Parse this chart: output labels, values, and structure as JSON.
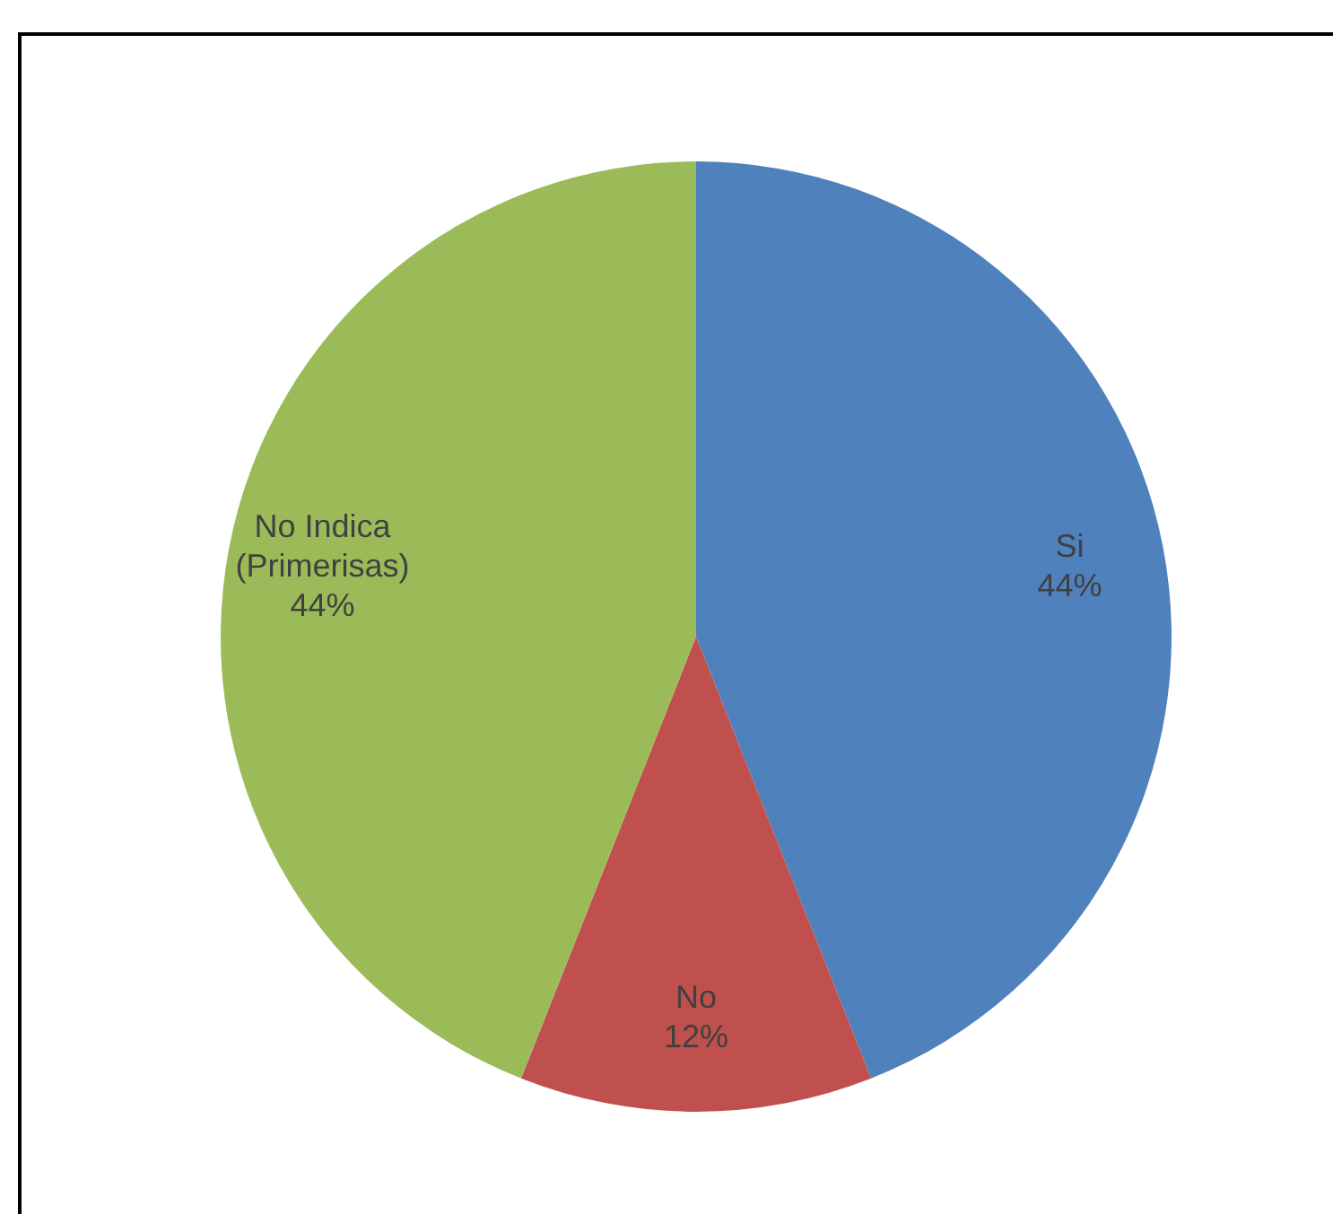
{
  "chart_data": {
    "type": "pie",
    "categories": [
      "Si",
      "No",
      "No Indica (Primerisas)"
    ],
    "values": [
      44,
      12,
      44
    ],
    "value_labels": [
      "44%",
      "12%",
      "44%"
    ],
    "colors": [
      "#4f81bd",
      "#c0504d",
      "#9bbb59"
    ],
    "legend": false
  }
}
